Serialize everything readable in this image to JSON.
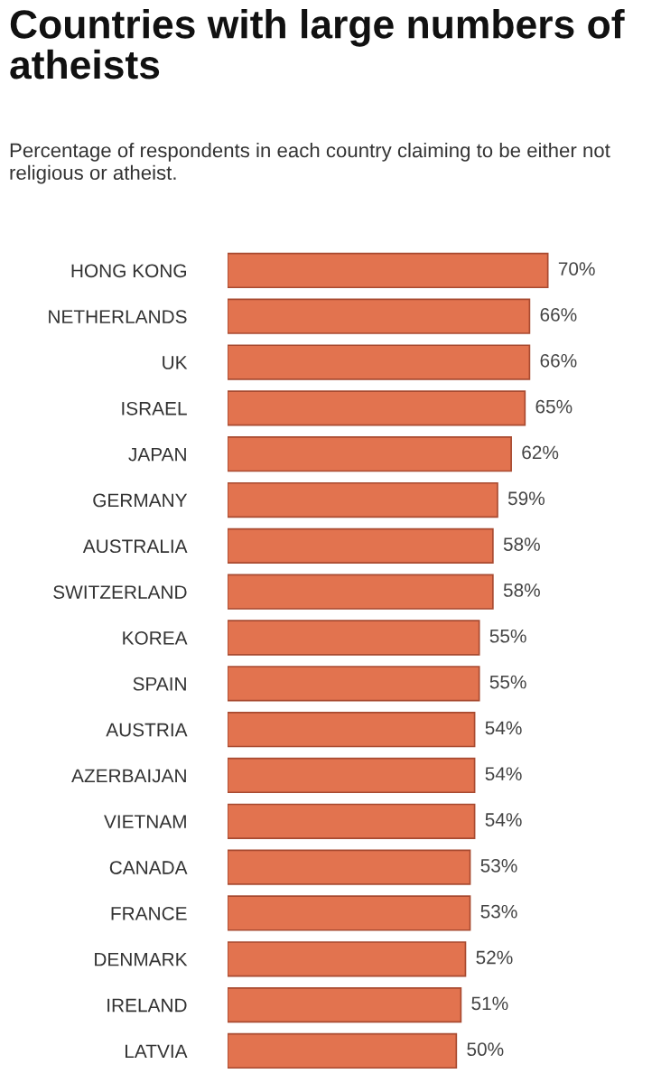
{
  "chart_data": {
    "type": "bar",
    "orientation": "horizontal",
    "title": "Countries with large numbers of atheists",
    "subtitle": "Percentage of respondents in each country claiming to be either not religious or atheist.",
    "categories": [
      "HONG KONG",
      "NETHERLANDS",
      "UK",
      "ISRAEL",
      "JAPAN",
      "GERMANY",
      "AUSTRALIA",
      "SWITZERLAND",
      "KOREA",
      "SPAIN",
      "AUSTRIA",
      "AZERBAIJAN",
      "VIETNAM",
      "CANADA",
      "FRANCE",
      "DENMARK",
      "IRELAND",
      "LATVIA"
    ],
    "values": [
      70,
      66,
      66,
      65,
      62,
      59,
      58,
      58,
      55,
      55,
      54,
      54,
      54,
      53,
      53,
      52,
      51,
      50
    ],
    "color": "#e2734f",
    "value_labels": [
      "70%",
      "66%",
      "66%",
      "65%",
      "62%",
      "59%",
      "58%",
      "58%",
      "55%",
      "55%",
      "54%",
      "54%",
      "54%",
      "53%",
      "53%",
      "52%",
      "51%",
      "50%"
    ],
    "grid": false,
    "legend": false
  }
}
